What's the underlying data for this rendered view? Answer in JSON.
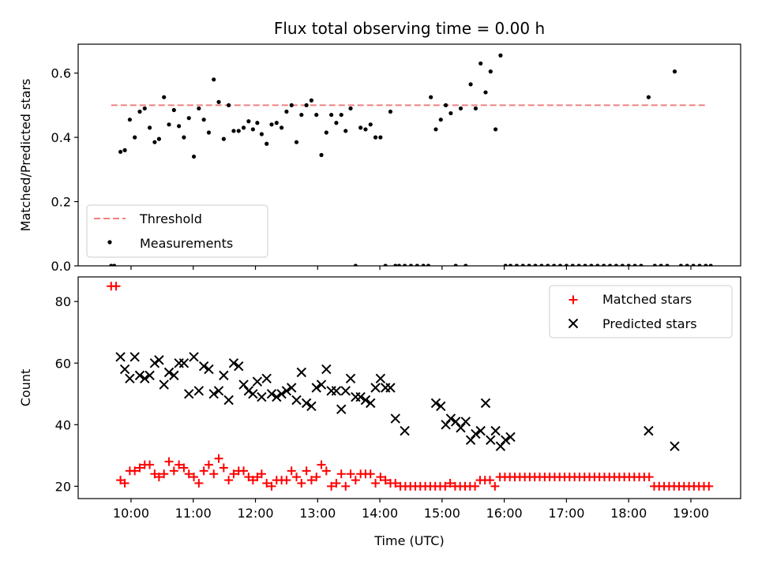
{
  "chart_data": [
    {
      "type": "scatter",
      "title": "Flux total observing time = 0.00 h",
      "xlabel": "",
      "ylabel": "Matched/Predicted stars",
      "xlim": [
        9.15,
        19.8
      ],
      "ylim": [
        0.0,
        0.69
      ],
      "yticks": [
        0.0,
        0.2,
        0.4,
        0.6
      ],
      "yticklabels": [
        "0.0",
        "0.2",
        "0.4",
        "0.6"
      ],
      "xticks": [
        10,
        11,
        12,
        13,
        14,
        15,
        16,
        17,
        18,
        19
      ],
      "xticklabels": [],
      "grid": false,
      "legend_position": "lower-left",
      "threshold": {
        "name": "Threshold",
        "value": 0.5,
        "x_range": [
          9.68,
          19.25
        ],
        "color": "#f08080",
        "style": "dashed"
      },
      "series": [
        {
          "name": "Measurements",
          "color": "#000000",
          "marker": "dot",
          "x": [
            9.68,
            9.73,
            9.83,
            9.9,
            9.98,
            10.06,
            10.14,
            10.22,
            10.3,
            10.38,
            10.45,
            10.53,
            10.61,
            10.69,
            10.77,
            10.85,
            10.93,
            11.01,
            11.09,
            11.17,
            11.25,
            11.33,
            11.41,
            11.49,
            11.57,
            11.65,
            11.73,
            11.81,
            11.89,
            11.96,
            12.03,
            12.1,
            12.18,
            12.26,
            12.34,
            12.42,
            12.5,
            12.58,
            12.66,
            12.74,
            12.82,
            12.9,
            12.98,
            13.06,
            13.14,
            13.22,
            13.3,
            13.38,
            13.45,
            13.53,
            13.61,
            13.69,
            13.77,
            13.85,
            13.93,
            14.01,
            14.09,
            14.17,
            14.25,
            14.31,
            14.4,
            14.5,
            14.6,
            14.7,
            14.78,
            14.82,
            14.9,
            14.98,
            15.06,
            15.14,
            15.22,
            15.3,
            15.38,
            15.46,
            15.54,
            15.62,
            15.7,
            15.78,
            15.86,
            15.94,
            16.02,
            16.1,
            16.2,
            16.3,
            16.4,
            16.5,
            16.6,
            16.7,
            16.8,
            16.9,
            17.0,
            17.1,
            17.2,
            17.3,
            17.4,
            17.5,
            17.6,
            17.7,
            17.8,
            17.9,
            18.0,
            18.1,
            18.2,
            18.32,
            18.42,
            18.52,
            18.62,
            18.74,
            18.84,
            18.94,
            19.04,
            19.14,
            19.24,
            19.32
          ],
          "y": [
            0.0,
            0.0,
            0.355,
            0.36,
            0.455,
            0.4,
            0.48,
            0.49,
            0.43,
            0.385,
            0.395,
            0.525,
            0.44,
            0.485,
            0.435,
            0.4,
            0.46,
            0.34,
            0.49,
            0.455,
            0.415,
            0.58,
            0.51,
            0.395,
            0.5,
            0.42,
            0.42,
            0.43,
            0.45,
            0.425,
            0.445,
            0.41,
            0.38,
            0.44,
            0.445,
            0.43,
            0.48,
            0.5,
            0.385,
            0.47,
            0.5,
            0.515,
            0.47,
            0.345,
            0.415,
            0.47,
            0.445,
            0.47,
            0.42,
            0.49,
            0.0,
            0.43,
            0.425,
            0.44,
            0.4,
            0.4,
            0.0,
            0.48,
            0.0,
            0.0,
            0.0,
            0.0,
            0.0,
            0.0,
            0.0,
            0.525,
            0.425,
            0.455,
            0.5,
            0.475,
            0.0,
            0.49,
            0.0,
            0.565,
            0.49,
            0.63,
            0.54,
            0.605,
            0.425,
            0.655,
            0.0,
            0.0,
            0.0,
            0.0,
            0.0,
            0.0,
            0.0,
            0.0,
            0.0,
            0.0,
            0.0,
            0.0,
            0.0,
            0.0,
            0.0,
            0.0,
            0.0,
            0.0,
            0.0,
            0.0,
            0.0,
            0.0,
            0.0,
            0.525,
            0.0,
            0.0,
            0.0,
            0.605,
            0.0,
            0.0,
            0.0,
            0.0,
            0.0,
            0.0
          ]
        }
      ]
    },
    {
      "type": "scatter",
      "title": "",
      "xlabel": "Time (UTC)",
      "ylabel": "Count",
      "xlim": [
        9.15,
        19.8
      ],
      "ylim": [
        16,
        88
      ],
      "yticks": [
        20,
        40,
        60,
        80
      ],
      "yticklabels": [
        "20",
        "40",
        "60",
        "80"
      ],
      "xticks": [
        10,
        11,
        12,
        13,
        14,
        15,
        16,
        17,
        18,
        19
      ],
      "xticklabels": [
        "10:00",
        "11:00",
        "12:00",
        "13:00",
        "14:00",
        "15:00",
        "16:00",
        "17:00",
        "18:00",
        "19:00"
      ],
      "grid": false,
      "legend_position": "upper-right",
      "series": [
        {
          "name": "Matched stars",
          "color": "#ff0000",
          "marker": "plus",
          "x": [
            9.68,
            9.76,
            9.83,
            9.9,
            9.98,
            10.06,
            10.14,
            10.22,
            10.3,
            10.38,
            10.45,
            10.53,
            10.61,
            10.69,
            10.77,
            10.85,
            10.93,
            11.01,
            11.09,
            11.17,
            11.25,
            11.33,
            11.41,
            11.49,
            11.57,
            11.65,
            11.73,
            11.81,
            11.89,
            11.96,
            12.03,
            12.1,
            12.18,
            12.26,
            12.34,
            12.42,
            12.5,
            12.58,
            12.66,
            12.74,
            12.82,
            12.9,
            12.98,
            13.06,
            13.14,
            13.22,
            13.3,
            13.38,
            13.45,
            13.53,
            13.61,
            13.69,
            13.77,
            13.85,
            13.93,
            14.01,
            14.09,
            14.17,
            14.25,
            14.33,
            14.41,
            14.49,
            14.57,
            14.65,
            14.73,
            14.81,
            14.89,
            14.97,
            15.05,
            15.13,
            15.21,
            15.29,
            15.37,
            15.45,
            15.53,
            15.61,
            15.69,
            15.77,
            15.85,
            15.93,
            16.01,
            16.09,
            16.17,
            16.25,
            16.33,
            16.41,
            16.49,
            16.57,
            16.65,
            16.73,
            16.81,
            16.89,
            16.97,
            17.05,
            17.13,
            17.21,
            17.29,
            17.37,
            17.45,
            17.53,
            17.61,
            17.69,
            17.77,
            17.85,
            17.93,
            18.01,
            18.09,
            18.17,
            18.25,
            18.33,
            18.41,
            18.49,
            18.57,
            18.65,
            18.73,
            18.81,
            18.89,
            18.97,
            19.05,
            19.13,
            19.21,
            19.29
          ],
          "y": [
            85,
            85,
            22,
            21,
            25,
            25,
            26,
            27,
            27,
            24,
            23,
            24,
            28,
            25,
            27,
            26,
            24,
            23,
            21,
            25,
            27,
            24,
            29,
            26,
            22,
            24,
            25,
            25,
            23,
            22,
            23,
            24,
            21,
            20,
            22,
            22,
            22,
            25,
            23,
            21,
            25,
            22,
            23,
            27,
            25,
            20,
            21,
            24,
            20,
            24,
            22,
            24,
            24,
            24,
            21,
            23,
            22,
            21,
            21,
            20,
            20,
            20,
            20,
            20,
            20,
            20,
            20,
            20,
            20,
            21,
            20,
            20,
            20,
            20,
            20,
            22,
            22,
            22,
            20,
            23,
            23,
            23,
            23,
            23,
            23,
            23,
            23,
            23,
            23,
            23,
            23,
            23,
            23,
            23,
            23,
            23,
            23,
            23,
            23,
            23,
            23,
            23,
            23,
            23,
            23,
            23,
            23,
            23,
            23,
            23,
            20,
            20,
            20,
            20,
            20,
            20,
            20,
            20,
            20,
            20,
            20,
            20
          ]
        },
        {
          "name": "Predicted stars",
          "color": "#000000",
          "marker": "x",
          "x": [
            9.83,
            9.9,
            9.98,
            10.06,
            10.14,
            10.22,
            10.3,
            10.38,
            10.45,
            10.53,
            10.61,
            10.69,
            10.77,
            10.85,
            10.93,
            11.01,
            11.09,
            11.17,
            11.25,
            11.33,
            11.41,
            11.49,
            11.57,
            11.65,
            11.73,
            11.81,
            11.89,
            11.96,
            12.03,
            12.1,
            12.18,
            12.26,
            12.34,
            12.42,
            12.5,
            12.58,
            12.66,
            12.74,
            12.82,
            12.9,
            12.98,
            13.06,
            13.14,
            13.22,
            13.3,
            13.38,
            13.45,
            13.53,
            13.61,
            13.69,
            13.77,
            13.85,
            13.93,
            14.01,
            14.09,
            14.17,
            14.25,
            14.4,
            14.9,
            14.98,
            15.06,
            15.14,
            15.22,
            15.3,
            15.38,
            15.46,
            15.54,
            15.62,
            15.7,
            15.78,
            15.86,
            15.94,
            16.02,
            16.1,
            18.32,
            18.74
          ],
          "y": [
            62,
            58,
            55,
            62,
            56,
            55,
            56,
            60,
            61,
            53,
            57,
            56,
            60,
            60,
            50,
            62,
            51,
            59,
            58,
            50,
            51,
            56,
            48,
            60,
            59,
            53,
            51,
            50,
            54,
            49,
            55,
            50,
            49,
            50,
            51,
            52,
            48,
            57,
            47,
            46,
            52,
            53,
            58,
            51,
            51,
            45,
            51,
            55,
            49,
            49,
            48,
            47,
            52,
            55,
            52,
            52,
            42,
            38,
            47,
            46,
            40,
            42,
            41,
            39,
            41,
            35,
            37,
            38,
            47,
            35,
            38,
            33,
            35,
            36,
            38,
            33
          ]
        }
      ]
    }
  ]
}
